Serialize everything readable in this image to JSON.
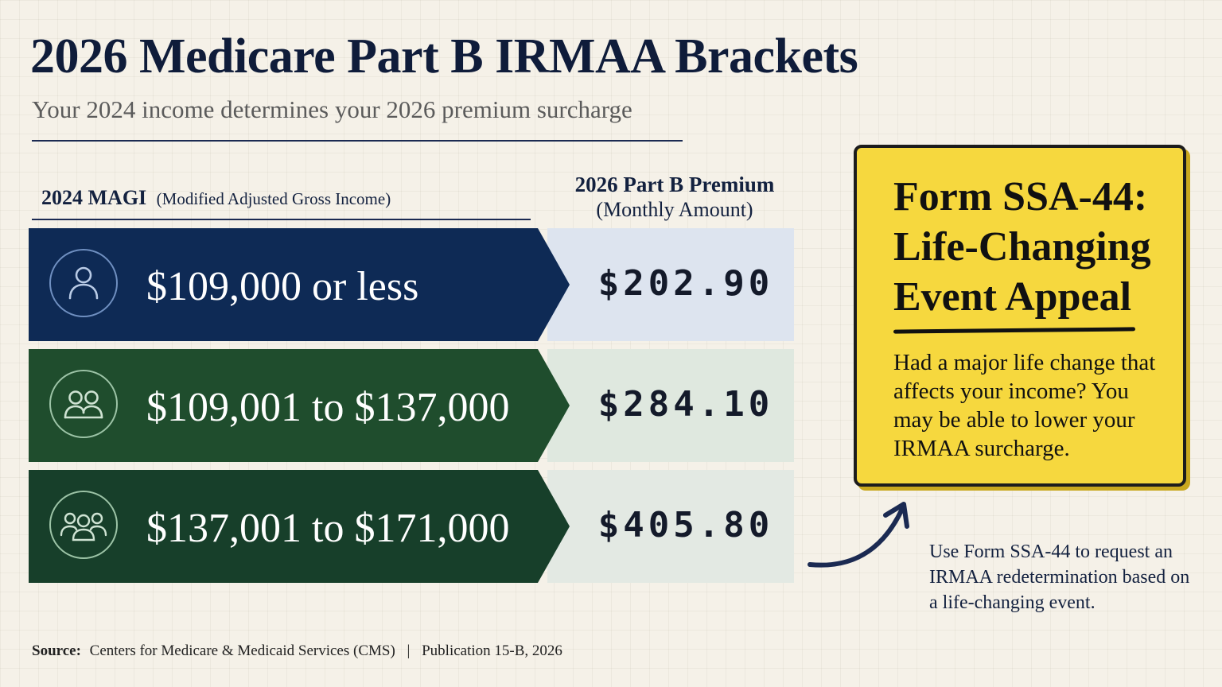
{
  "header": {
    "title": "2026 Medicare Part B IRMAA Brackets",
    "subtitle": "Your 2024 income determines your 2026 premium surcharge"
  },
  "columns": {
    "income_label": "2024 MAGI",
    "income_note": "(Modified Adjusted Gross Income)",
    "premium_label": "2026 Part B Premium",
    "premium_note": "(Monthly Amount)"
  },
  "brackets": [
    {
      "range": "$109,000 or less",
      "premium": "$202.90",
      "icon": "person-icon",
      "band_color": "#0e2a55",
      "price_bg": "#dde4ef"
    },
    {
      "range": "$109,001 to $137,000",
      "premium": "$284.10",
      "icon": "two-people-icon",
      "band_color": "#1f4d2d",
      "price_bg": "#dfe8df"
    },
    {
      "range": "$137,001 to $171,000",
      "premium": "$405.80",
      "icon": "group-icon",
      "band_color": "#173f2a",
      "price_bg": "#e3e9e3"
    }
  ],
  "callout": {
    "title": "Form SSA-44: Life-Changing Event Appeal",
    "body": "Had a major life change that affects your income? You may be able to lower your IRMAA surcharge.",
    "color": "#f6d83e"
  },
  "side_note": "Use Form SSA-44 to request an IRMAA redetermination based on a life-changing event.",
  "source": {
    "label": "Source:",
    "org": "Centers for Medicare & Medicaid Services (CMS)",
    "separator": "|",
    "publication": "Publication 15-B, 2026"
  }
}
